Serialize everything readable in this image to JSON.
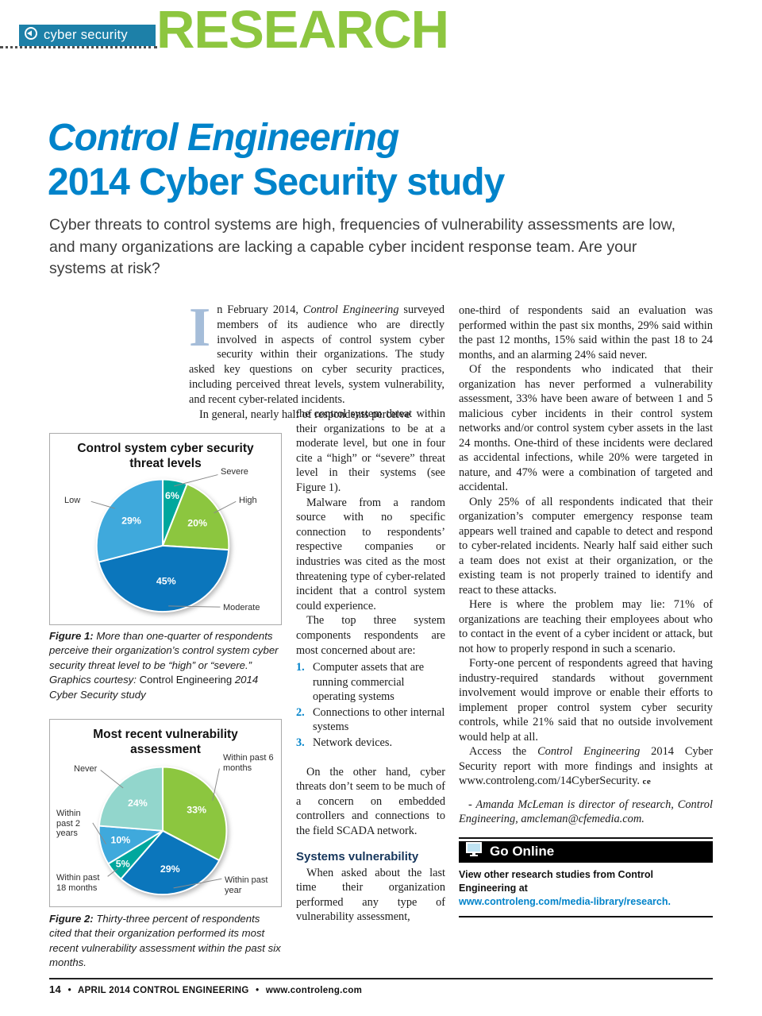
{
  "header": {
    "tag": "cyber security",
    "banner": "RESEARCH"
  },
  "title": {
    "line1": "Control Engineering",
    "line2": "2014 Cyber Security study"
  },
  "deck": "Cyber threats to control systems are high, frequencies of vulnerability assessments are low, and many organizations are lacking a capable cyber incident response team. Are your systems at risk?",
  "intro": {
    "dropcap": "I",
    "before_italic": "n February 2014, ",
    "italic": "Control Engineering",
    "after_italic": " surveyed members of its audience who are directly involved in aspects of control system cyber security within their organizations. The study asked key questions on cyber security practices, including perceived threat levels, system vulnerability, and recent cyber-related incidents.",
    "para2_lead": "In general, nearly half of respondents perceive"
  },
  "middle_column": {
    "para1": "the control system threat within their organizations to be at a moderate level, but one in four cite a “high” or “severe” threat level in their systems (see Figure 1).",
    "para2": "Malware from a random source with no specific connection to respondents’ respective companies or industries was cited as the most threatening type of cyber-related incident that a control system could experience.",
    "para3": "The top three system components respondents are most concerned about are:",
    "list": [
      {
        "num": "1.",
        "text": "Computer assets that are running commercial operating systems"
      },
      {
        "num": "2.",
        "text": "Connections to other internal systems"
      },
      {
        "num": "3.",
        "text": "Network devices."
      }
    ],
    "para4": "On the other hand, cyber threats don’t seem to be much of a concern on embedded controllers and connections to the field SCADA network.",
    "subhead": "Systems vulnerability",
    "para5": "When asked about the last time their organization performed any type of vulnerability assessment,"
  },
  "right_column": {
    "para1": "one-third of respondents said an evaluation was performed within the past six months, 29% said within the past 12 months, 15% said within the past 18 to 24 months, and an alarming 24% said never.",
    "para2": "Of the respondents who indicated that their organization has never performed a vulnerability assessment, 33% have been aware of between 1 and 5 malicious cyber incidents in their control system networks and/or control system cyber assets in the last 24 months. One-third of these incidents were declared as accidental infections, while 20% were targeted in nature, and 47% were a combination of targeted and accidental.",
    "para3": "Only 25% of all respondents indicated that their organization’s computer emergency response team appears well trained and capable to detect and respond to cyber-related incidents. Nearly half said either such a team does not exist at their organization, or the existing team is not properly trained to identify and react to these attacks.",
    "para4": "Here is where the problem may lie: 71% of organizations are teaching their employees about who to contact in the event of a cyber incident or attack, but not how to properly respond in such a scenario.",
    "para5": "Forty-one percent of respondents agreed that having industry-required standards without government involvement would improve or enable their efforts to implement proper control system cyber security controls, while 21% said that no outside involvement would help at all.",
    "para6_before": "Access the ",
    "para6_italic": "Control Engineering",
    "para6_after": " 2014 Cyber Security report with more findings and insights at www.controleng.com/14CyberSecurity. ",
    "para6_marker": "ce",
    "byline": "- Amanda McLeman is director of research, Control Engineering, amcleman@cfemedia.com."
  },
  "figure1": {
    "caption_bold": "Figure 1:",
    "caption_text": " More than one-quarter of respondents perceive their organization’s control system cyber security threat level to be “high” or “severe.” Graphics courtesy: ",
    "caption_roman": "Control Engineering",
    "caption_end": " 2014 Cyber Security study"
  },
  "figure2": {
    "caption_bold": "Figure 2:",
    "caption_text": " Thirty-three percent of respondents cited that their organization performed its most recent vulnerability assessment within the past six months."
  },
  "go_online": {
    "title": "Go Online",
    "line1": "View other research studies from Control Engineering at",
    "link": "www.controleng.com/media-library/research."
  },
  "footer": {
    "page_number": "14",
    "sep": "•",
    "magazine": "APRIL 2014 CONTROL ENGINEERING",
    "url": "www.controleng.com"
  },
  "icons": {
    "tag_icon": "circle-arrow",
    "go_online_icon": "computer-monitor"
  },
  "colors": {
    "brand_blue": "#0083ca",
    "banner_green": "#8dc63f",
    "tag_teal": "#1d80a8",
    "go_online_bar": "#000000"
  },
  "chart_data": [
    {
      "type": "pie",
      "title": "Control system cyber security threat levels",
      "start_angle": "12 o'clock",
      "direction": "clockwise",
      "legend_position": "outside-labels",
      "slices": [
        {
          "label": "Severe",
          "value": 6,
          "pct_label": "6%",
          "color": "#00a79d"
        },
        {
          "label": "High",
          "value": 20,
          "pct_label": "20%",
          "color": "#8cc63f"
        },
        {
          "label": "Moderate",
          "value": 45,
          "pct_label": "45%",
          "color": "#0b76bc"
        },
        {
          "label": "Low",
          "value": 29,
          "pct_label": "29%",
          "color": "#3fa9dc"
        }
      ]
    },
    {
      "type": "pie",
      "title": "Most recent vulnerability assessment",
      "start_angle": "12 o'clock",
      "direction": "clockwise",
      "legend_position": "outside-labels",
      "slices": [
        {
          "label": "Within past 6 months",
          "value": 33,
          "pct_label": "33%",
          "color": "#8cc63f"
        },
        {
          "label": "Within past year",
          "value": 29,
          "pct_label": "29%",
          "color": "#0b76bc"
        },
        {
          "label": "Within past 18 months",
          "value": 5,
          "pct_label": "5%",
          "color": "#00a79d"
        },
        {
          "label": "Within past 2 years",
          "value": 10,
          "pct_label": "10%",
          "color": "#3fa9dc"
        },
        {
          "label": "Never",
          "value": 24,
          "pct_label": "24%",
          "color": "#92d6cc"
        }
      ]
    }
  ]
}
